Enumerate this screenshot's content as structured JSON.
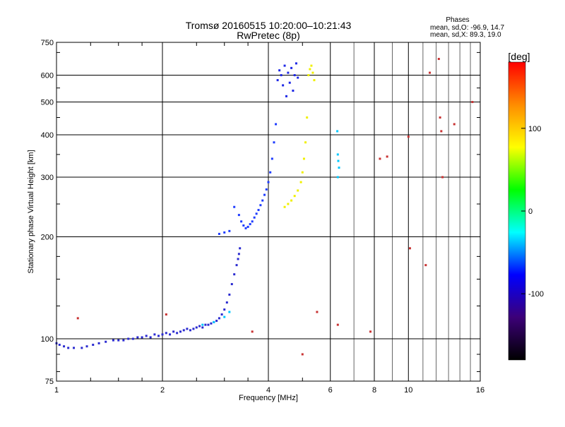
{
  "chart_data": {
    "type": "scatter",
    "title": "Tromsø 20160515 10:20:00–10:21:43",
    "subtitle": "RwPretec (8p)",
    "xlabel": "Frequency [MHz]",
    "ylabel": "Stationary phase Virtual Height [km]",
    "x_scale": "log",
    "y_scale": "log",
    "xlim": [
      1,
      16
    ],
    "ylim": [
      75,
      750
    ],
    "x_ticks": [
      1,
      2,
      4,
      6,
      8,
      10,
      16
    ],
    "y_ticks": [
      75,
      100,
      200,
      300,
      400,
      500,
      600,
      750
    ],
    "grid": true,
    "phases_box": {
      "title": "Phases",
      "line_o": "mean, sd,O: -96.9, 14.7",
      "line_x": "mean, sd,X: 89.3, 19.0"
    },
    "colorbar": {
      "label": "[deg]",
      "range": [
        -180,
        180
      ],
      "ticks": [
        100,
        0,
        -100
      ],
      "colors": [
        "#ff0000",
        "#ff8c00",
        "#ffff00",
        "#00ff00",
        "#00ffff",
        "#0000ff",
        "#3c0078",
        "#000000"
      ]
    },
    "series": [
      {
        "phase": "O",
        "color": "#2a2ad0",
        "x": [
          1.0,
          1.02,
          1.05,
          1.08,
          1.12,
          1.18,
          1.22,
          1.27,
          1.32,
          1.38,
          1.45,
          1.5,
          1.55,
          1.6,
          1.65,
          1.7,
          1.75,
          1.8,
          1.85,
          1.9,
          1.95,
          2.0,
          2.05,
          2.1,
          2.15,
          2.2,
          2.25,
          2.3,
          2.35,
          2.4,
          2.45,
          2.5,
          2.55,
          2.6,
          2.65,
          2.7,
          2.75,
          2.8,
          2.85,
          2.9,
          2.95,
          3.0,
          3.05,
          3.1,
          3.15,
          3.2,
          3.25,
          3.28,
          3.3,
          3.32
        ],
        "y": [
          97,
          96,
          95,
          94,
          94,
          94,
          95,
          96,
          97,
          98,
          99,
          99,
          99,
          100,
          100,
          101,
          101,
          102,
          101,
          103,
          102,
          103,
          104,
          103,
          105,
          104,
          105,
          106,
          107,
          106,
          107,
          108,
          109,
          108,
          110,
          110,
          111,
          112,
          113,
          115,
          118,
          122,
          128,
          135,
          145,
          155,
          165,
          172,
          178,
          185
        ]
      },
      {
        "phase": "O",
        "color": "#1e3cff",
        "x": [
          2.9,
          3.0,
          3.1,
          3.2,
          3.3,
          3.35,
          3.4,
          3.45,
          3.5,
          3.55,
          3.6,
          3.65,
          3.7,
          3.75,
          3.8,
          3.85,
          3.9,
          3.95,
          4.0,
          4.05,
          4.1,
          4.15,
          4.2
        ],
        "y": [
          204,
          206,
          208,
          245,
          232,
          222,
          216,
          212,
          214,
          218,
          222,
          228,
          234,
          240,
          248,
          256,
          266,
          276,
          290,
          310,
          340,
          380,
          430
        ]
      },
      {
        "phase": "O",
        "color": "#1e28e6",
        "x": [
          4.25,
          4.3,
          4.35,
          4.4,
          4.45,
          4.5,
          4.55,
          4.6,
          4.65,
          4.7,
          4.75,
          4.8,
          4.85
        ],
        "y": [
          580,
          620,
          600,
          560,
          640,
          520,
          610,
          570,
          630,
          540,
          600,
          650,
          590
        ]
      },
      {
        "phase": "X",
        "color": "#f0f000",
        "x": [
          4.45,
          4.55,
          4.65,
          4.75,
          4.85,
          4.95,
          5.0,
          5.05,
          5.1,
          5.15,
          5.2,
          5.25,
          5.3,
          5.35,
          5.4
        ],
        "y": [
          245,
          250,
          256,
          264,
          274,
          290,
          310,
          340,
          380,
          450,
          600,
          625,
          640,
          610,
          580
        ]
      },
      {
        "phase": "O",
        "color": "#00c8ff",
        "x": [
          2.6,
          2.8,
          3.0,
          3.1,
          6.3,
          6.32,
          6.35,
          6.3,
          6.28
        ],
        "y": [
          110,
          112,
          116,
          120,
          350,
          335,
          320,
          300,
          410
        ]
      },
      {
        "phase": "mixed",
        "color": "#c83232",
        "x": [
          1.15,
          2.05,
          3.6,
          5.0,
          5.5,
          6.3,
          7.8,
          8.3,
          8.7,
          10.0,
          10.1,
          11.2,
          11.5,
          12.2,
          12.3,
          12.4,
          12.5,
          13.5,
          15.2
        ],
        "y": [
          115,
          118,
          105,
          90,
          120,
          110,
          105,
          340,
          345,
          395,
          185,
          165,
          610,
          670,
          450,
          410,
          300,
          430,
          500
        ]
      }
    ]
  }
}
